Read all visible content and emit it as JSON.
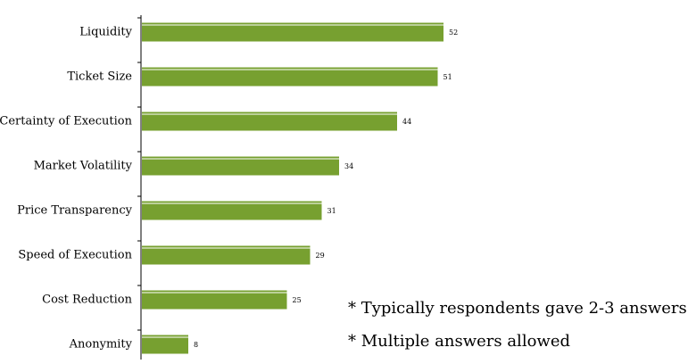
{
  "chart_data": {
    "type": "bar",
    "orientation": "horizontal",
    "categories": [
      "Liquidity",
      "Ticket Size",
      "Certainty of Execution",
      "Market Volatility",
      "Price Transparency",
      "Speed of Execution",
      "Cost Reduction",
      "Anonymity"
    ],
    "values": [
      52,
      51,
      44,
      34,
      31,
      29,
      25,
      8
    ],
    "data_labels": [
      "52",
      "51",
      "44",
      "34",
      "31",
      "29",
      "25",
      "8"
    ],
    "xlim": [
      0,
      60
    ],
    "grid": false,
    "legend": "none",
    "colors": {
      "bar": "#77a030",
      "axis": "#000000"
    }
  },
  "notes": [
    "* Typically respondents gave 2-3 answers",
    "* Multiple answers allowed"
  ]
}
